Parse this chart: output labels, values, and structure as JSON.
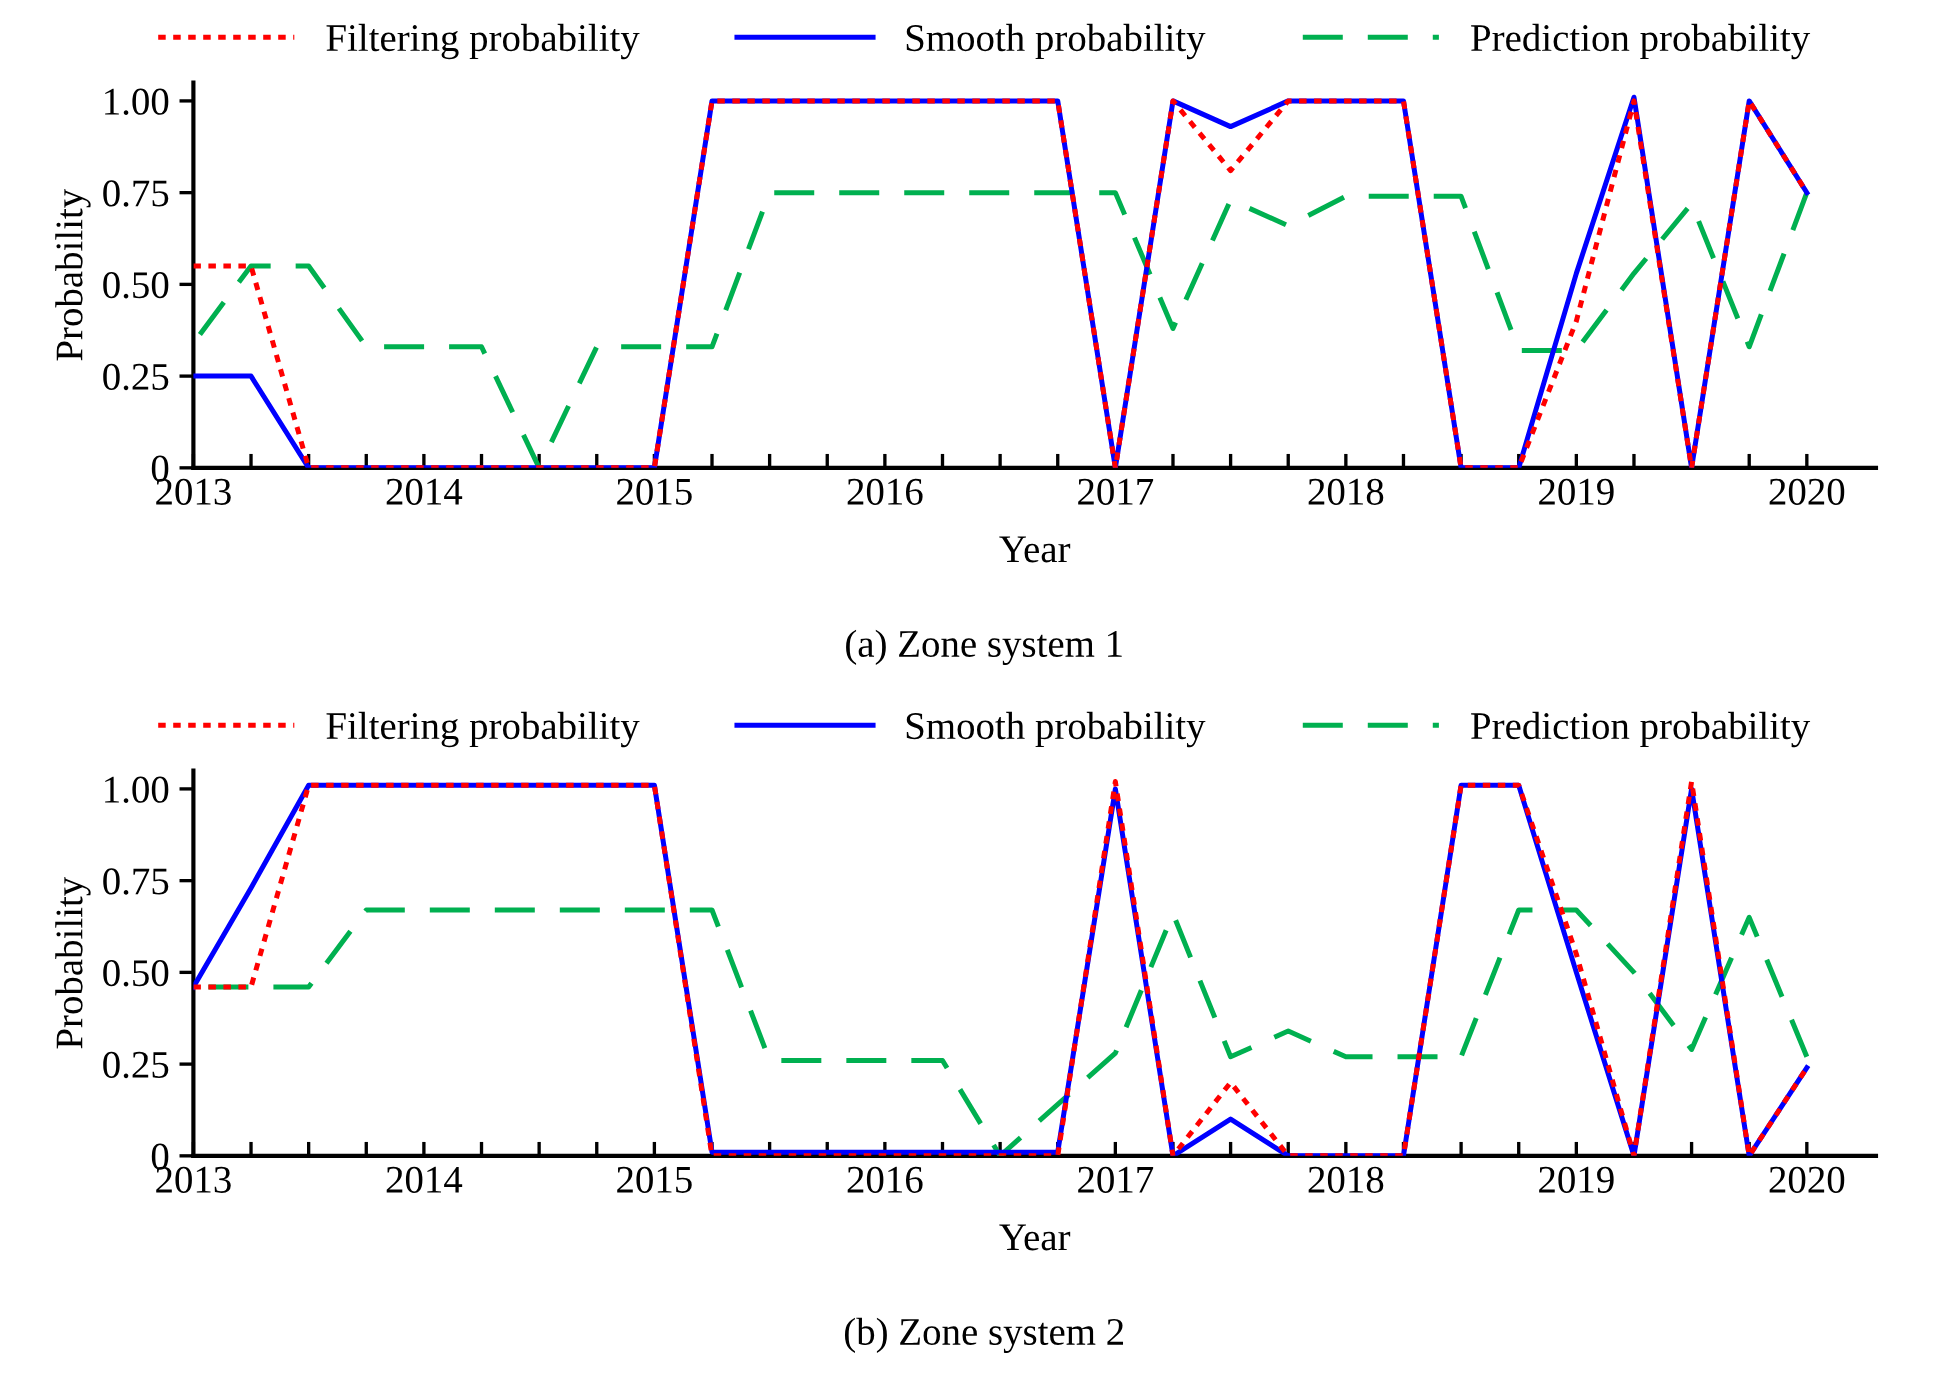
{
  "chart_data": [
    {
      "type": "line",
      "xlabel": "Year",
      "ylabel": "Probability",
      "annotations": [
        "(a) Zone system 1"
      ],
      "legend": "top",
      "grid": false,
      "x": [
        2013,
        2013.25,
        2013.5,
        2013.75,
        2014,
        2014.25,
        2014.5,
        2014.75,
        2015,
        2015.25,
        2015.5,
        2015.75,
        2016,
        2016.25,
        2016.5,
        2016.75,
        2017,
        2017.25,
        2017.5,
        2017.75,
        2018,
        2018.25,
        2018.5,
        2018.75,
        2019,
        2019.25,
        2019.5,
        2019.75,
        2020
      ],
      "xlim": [
        2013,
        2020.3
      ],
      "ylim": [
        0,
        1.05
      ],
      "xticks": [
        2013,
        {
          "value": 2013.25,
          "label": null
        },
        {
          "value": 2013.5,
          "label": null
        },
        {
          "value": 2013.75,
          "label": null
        },
        2014,
        {
          "value": 2014.25,
          "label": null
        },
        {
          "value": 2014.5,
          "label": null
        },
        {
          "value": 2014.75,
          "label": null
        },
        2015,
        {
          "value": 2015.25,
          "label": null
        },
        {
          "value": 2015.5,
          "label": null
        },
        {
          "value": 2015.75,
          "label": null
        },
        2016,
        {
          "value": 2016.25,
          "label": null
        },
        {
          "value": 2016.5,
          "label": null
        },
        {
          "value": 2016.75,
          "label": null
        },
        2017,
        {
          "value": 2017.25,
          "label": null
        },
        {
          "value": 2017.5,
          "label": null
        },
        {
          "value": 2017.75,
          "label": null
        },
        2018,
        {
          "value": 2018.25,
          "label": null
        },
        {
          "value": 2018.5,
          "label": null
        },
        {
          "value": 2018.75,
          "label": null
        },
        2019,
        {
          "value": 2019.25,
          "label": null
        },
        {
          "value": 2019.5,
          "label": null
        },
        {
          "value": 2019.75,
          "label": null
        },
        2020
      ],
      "yticks": [
        0,
        {
          "value": 0.25,
          "label": "0.25"
        },
        {
          "value": 0.5,
          "label": "0.50"
        },
        {
          "value": 0.75,
          "label": "0.75"
        },
        {
          "value": 1,
          "label": "1.00"
        }
      ],
      "series": [
        {
          "name": "Filtering probability",
          "color": "#ff0000",
          "line_style": "dotted",
          "values": [
            0.55,
            0.55,
            0,
            0,
            0,
            0,
            0,
            0,
            0,
            1,
            1,
            1,
            1,
            1,
            1,
            1,
            0,
            1,
            0.81,
            1,
            1,
            1,
            0,
            0,
            0.4,
            1,
            0,
            1,
            0.75
          ]
        },
        {
          "name": "Smooth probability",
          "color": "#0000ff",
          "line_style": "solid",
          "values": [
            0.25,
            0.25,
            0,
            0,
            0,
            0,
            0,
            0,
            0,
            1,
            1,
            1,
            1,
            1,
            1,
            1,
            0,
            1,
            0.93,
            1,
            1,
            1,
            0,
            0,
            0.53,
            1.01,
            0,
            1,
            0.75
          ]
        },
        {
          "name": "Prediction probability",
          "color": "#00b050",
          "line_style": "dashed",
          "values": [
            0.34,
            0.55,
            0.55,
            0.33,
            0.33,
            0.33,
            0,
            0.33,
            0.33,
            0.33,
            0.75,
            0.75,
            0.75,
            0.75,
            0.75,
            0.75,
            0.75,
            0.38,
            0.73,
            0.66,
            0.74,
            0.74,
            0.74,
            0.32,
            0.32,
            0.53,
            0.72,
            0.33,
            0.75
          ]
        }
      ]
    },
    {
      "type": "line",
      "xlabel": "Year",
      "ylabel": "Probability",
      "annotations": [
        "(b) Zone system 2"
      ],
      "legend": "top",
      "grid": false,
      "x": [
        2013,
        2013.25,
        2013.5,
        2013.75,
        2014,
        2014.25,
        2014.5,
        2014.75,
        2015,
        2015.25,
        2015.5,
        2015.75,
        2016,
        2016.25,
        2016.5,
        2016.75,
        2017,
        2017.25,
        2017.5,
        2017.75,
        2018,
        2018.25,
        2018.5,
        2018.75,
        2019,
        2019.25,
        2019.5,
        2019.75,
        2020
      ],
      "xlim": [
        2013,
        2020.3
      ],
      "ylim": [
        0,
        1.05
      ],
      "xticks": [
        2013,
        {
          "value": 2013.25,
          "label": null
        },
        {
          "value": 2013.5,
          "label": null
        },
        {
          "value": 2013.75,
          "label": null
        },
        2014,
        {
          "value": 2014.25,
          "label": null
        },
        {
          "value": 2014.5,
          "label": null
        },
        {
          "value": 2014.75,
          "label": null
        },
        2015,
        {
          "value": 2015.25,
          "label": null
        },
        {
          "value": 2015.5,
          "label": null
        },
        {
          "value": 2015.75,
          "label": null
        },
        2016,
        {
          "value": 2016.25,
          "label": null
        },
        {
          "value": 2016.5,
          "label": null
        },
        {
          "value": 2016.75,
          "label": null
        },
        2017,
        {
          "value": 2017.25,
          "label": null
        },
        {
          "value": 2017.5,
          "label": null
        },
        {
          "value": 2017.75,
          "label": null
        },
        2018,
        {
          "value": 2018.25,
          "label": null
        },
        {
          "value": 2018.5,
          "label": null
        },
        {
          "value": 2018.75,
          "label": null
        },
        2019,
        {
          "value": 2019.25,
          "label": null
        },
        {
          "value": 2019.5,
          "label": null
        },
        {
          "value": 2019.75,
          "label": null
        },
        2020
      ],
      "yticks": [
        0,
        {
          "value": 0.25,
          "label": "0.25"
        },
        {
          "value": 0.5,
          "label": "0.50"
        },
        {
          "value": 0.75,
          "label": "0.75"
        },
        {
          "value": 1,
          "label": "1.00"
        }
      ],
      "series": [
        {
          "name": "Filtering probability",
          "color": "#ff0000",
          "line_style": "dotted",
          "values": [
            0.46,
            0.46,
            1.01,
            1.01,
            1.01,
            1.01,
            1.01,
            1.01,
            1.01,
            0,
            0,
            0,
            0,
            0,
            0,
            0,
            1.02,
            0,
            0.2,
            0,
            0,
            0,
            1.01,
            1.01,
            0.55,
            0,
            1.02,
            0,
            0.24
          ]
        },
        {
          "name": "Smooth probability",
          "color": "#0000ff",
          "line_style": "solid",
          "values": [
            0.46,
            0.73,
            1.01,
            1.01,
            1.01,
            1.01,
            1.01,
            1.01,
            1.01,
            0.01,
            0.01,
            0.01,
            0.01,
            0.01,
            0.01,
            0.01,
            1,
            0,
            0.1,
            0,
            0,
            0,
            1.01,
            1.01,
            0.5,
            0,
            1,
            0,
            0.24
          ]
        },
        {
          "name": "Prediction probability",
          "color": "#00b050",
          "line_style": "dashed",
          "values": [
            0.46,
            0.46,
            0.46,
            0.67,
            0.67,
            0.67,
            0.67,
            0.67,
            0.67,
            0.67,
            0.26,
            0.26,
            0.26,
            0.26,
            0,
            0.14,
            0.28,
            0.66,
            0.27,
            0.34,
            0.27,
            0.27,
            0.27,
            0.67,
            0.67,
            0.5,
            0.29,
            0.65,
            0.27
          ]
        }
      ]
    }
  ]
}
